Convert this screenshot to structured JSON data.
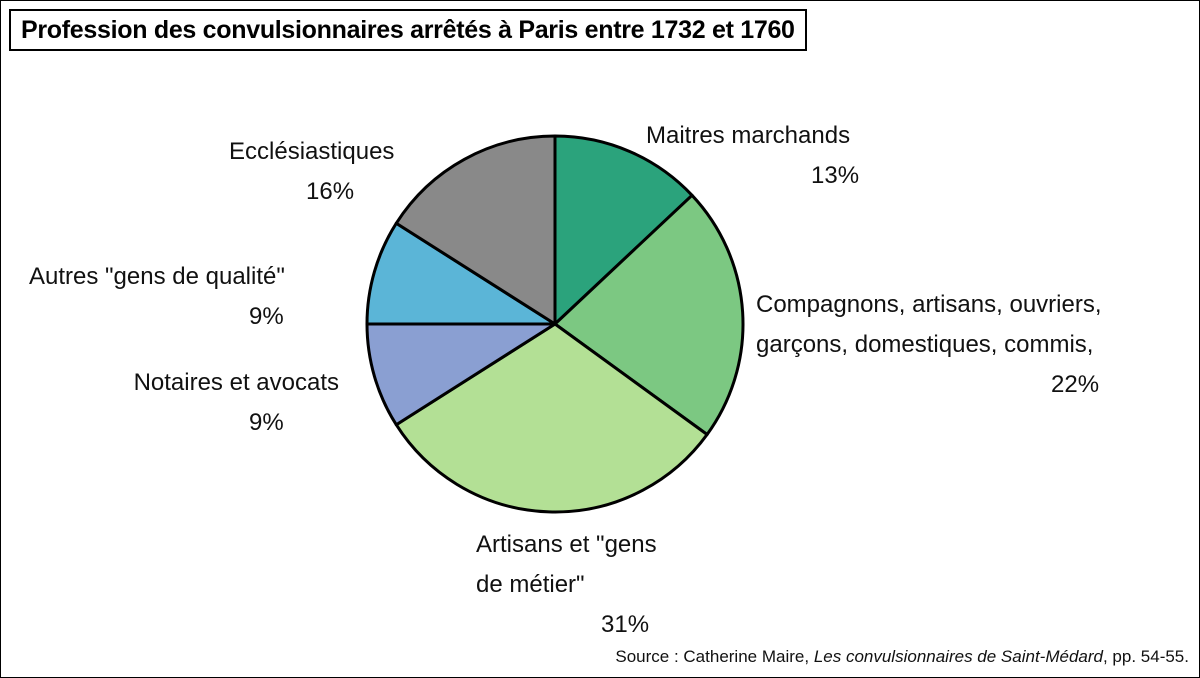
{
  "chart_data": {
    "type": "pie",
    "title": "Profession des convulsionnaires arrêtés à Paris entre 1732 et 1760",
    "categories": [
      "Maitres marchands",
      "Compagnons, artisans, ouvriers, garçons, domestiques, commis,",
      "Artisans et \"gens de métier\"",
      "Notaires et avocats",
      "Autres \"gens de qualité\"",
      "Ecclésiastiques"
    ],
    "values": [
      13,
      22,
      31,
      9,
      9,
      16
    ],
    "value_labels": [
      "13%",
      "22%",
      "31%",
      "9%",
      "9%",
      "16%"
    ],
    "colors": [
      "#2ba37c",
      "#7cc882",
      "#b3e095",
      "#8a9fd2",
      "#5bb5d7",
      "#898989"
    ],
    "source": {
      "prefix": "Source : Catherine Maire,",
      "title": "Les convulsionnaires de Saint-Médard",
      "suffix": ", pp. 54-55."
    }
  }
}
